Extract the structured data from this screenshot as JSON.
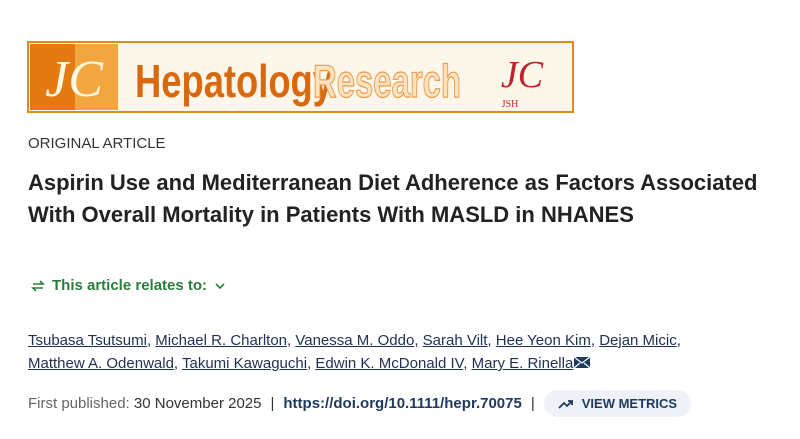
{
  "banner": {
    "journal_word_1": "Hepatology",
    "journal_word_2": "Research",
    "society": "JSH"
  },
  "article": {
    "type": "ORIGINAL ARTICLE",
    "title": "Aspirin Use and Mediterranean Diet Adherence as Factors Associated With Overall Mortality in Patients With MASLD in NHANES",
    "relates_to": "This article relates to:",
    "authors": [
      "Tsubasa Tsutsumi",
      "Michael R. Charlton",
      "Vanessa M. Oddo",
      "Sarah Vilt",
      "Hee Yeon Kim",
      "Dejan Micic",
      "Matthew A. Odenwald",
      "Takumi Kawaguchi",
      "Edwin K. McDonald IV",
      "Mary E. Rinella"
    ],
    "author_separator": ",",
    "first_published_label": "First published:",
    "first_published_date": "30 November 2025",
    "separator": "|",
    "doi": "https://doi.org/10.1111/hepr.70075",
    "metrics_button": "VIEW METRICS"
  }
}
